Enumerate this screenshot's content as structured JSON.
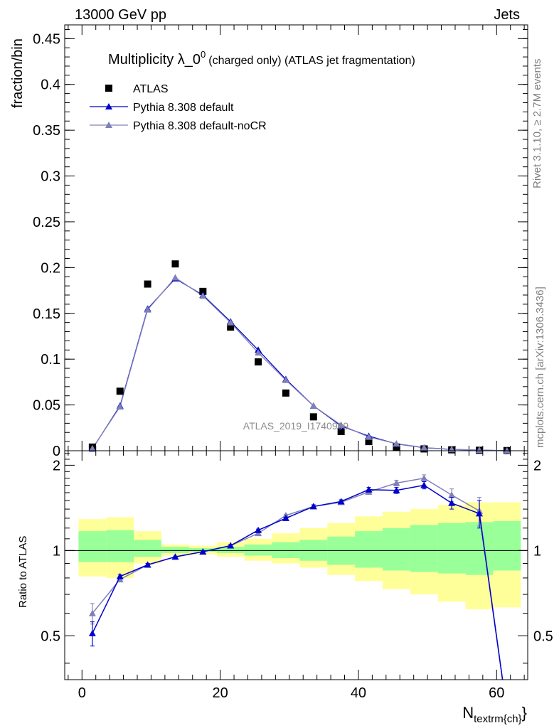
{
  "header": {
    "left": "13000 GeV pp",
    "right": "Jets"
  },
  "side": {
    "rivet": "Rivet 3.1.10, ≥ 2.7M events",
    "mcplots": "mcplots.cern.ch [arXiv:1306.3436]"
  },
  "watermark": "ATLAS_2019_I1740909",
  "chart_data": [
    {
      "type": "scatter",
      "title": "Multiplicity λ_0",
      "title_sup": "0",
      "title_tail": "(charged only) (ATLAS jet fragmentation)",
      "ylabel": "fraction/bin",
      "xlabel": "",
      "xlim": [
        -2.5,
        64.5
      ],
      "ylim": [
        0,
        0.465
      ],
      "yticks": [
        0,
        0.05,
        0.1,
        0.15,
        0.2,
        0.25,
        0.3,
        0.35,
        0.4,
        0.45
      ],
      "ytick_labels": [
        "0",
        "0.05",
        "0.1",
        "0.15",
        "0.2",
        "0.25",
        "0.3",
        "0.35",
        "0.4",
        "0.45"
      ],
      "grid": false,
      "legend_position": "top-left",
      "x": [
        1.5,
        5.5,
        9.5,
        13.5,
        17.5,
        21.5,
        25.5,
        29.5,
        33.5,
        37.5,
        41.5,
        45.5,
        49.5,
        53.5,
        57.5,
        61.5
      ],
      "series": [
        {
          "name": "ATLAS",
          "marker": "square",
          "color": "#000000",
          "values": [
            0.004,
            0.065,
            0.182,
            0.204,
            0.174,
            0.135,
            0.097,
            0.063,
            0.037,
            0.021,
            0.01,
            0.004,
            0.002,
            0.001,
            0.0005,
            0.0002
          ]
        },
        {
          "name": "Pythia 8.308 default",
          "marker": "triangle",
          "color": "#0000cc",
          "values": [
            0.002,
            0.049,
            0.155,
            0.188,
            0.17,
            0.141,
            0.11,
            0.078,
            0.049,
            0.027,
            0.016,
            0.0075,
            0.0033,
            0.0014,
            0.0007,
            5e-05
          ]
        },
        {
          "name": "Pythia 8.308 default-noCR",
          "marker": "triangle",
          "color": "#8080b8",
          "values": [
            0.0024,
            0.048,
            0.154,
            0.189,
            0.169,
            0.14,
            0.107,
            0.077,
            0.049,
            0.028,
            0.015,
            0.0077,
            0.0035,
            0.0015,
            0.0007,
            5e-05
          ]
        }
      ]
    },
    {
      "type": "line",
      "ylabel": "Ratio to ATLAS",
      "xlabel": "N",
      "xlabel_sub": "textrm{ch}",
      "xlim": [
        -2.5,
        64.5
      ],
      "ylim": [
        0.35,
        2.25
      ],
      "xticks": [
        0,
        20,
        40,
        60
      ],
      "xtick_labels": [
        "0",
        "20",
        "40",
        "60"
      ],
      "yticks": [
        0.5,
        1,
        2
      ],
      "ytick_labels": [
        "0.5",
        "1",
        "2"
      ],
      "reference_line": 1,
      "bins": [
        [
          -0.5,
          3.5
        ],
        [
          3.5,
          7.5
        ],
        [
          7.5,
          11.5
        ],
        [
          11.5,
          15.5
        ],
        [
          15.5,
          19.5
        ],
        [
          19.5,
          23.5
        ],
        [
          23.5,
          27.5
        ],
        [
          27.5,
          31.5
        ],
        [
          31.5,
          35.5
        ],
        [
          35.5,
          39.5
        ],
        [
          39.5,
          43.5
        ],
        [
          43.5,
          47.5
        ],
        [
          47.5,
          51.5
        ],
        [
          51.5,
          55.5
        ],
        [
          55.5,
          59.5
        ],
        [
          59.5,
          63.5
        ]
      ],
      "bands": {
        "stat_low": [
          0.91,
          0.91,
          0.95,
          0.98,
          0.99,
          0.98,
          0.96,
          0.94,
          0.92,
          0.89,
          0.87,
          0.85,
          0.84,
          0.83,
          0.82,
          0.85
        ],
        "stat_high": [
          1.17,
          1.18,
          1.09,
          1.03,
          1.02,
          1.03,
          1.05,
          1.07,
          1.09,
          1.12,
          1.17,
          1.2,
          1.23,
          1.25,
          1.26,
          1.27
        ],
        "total_low": [
          0.81,
          0.8,
          0.9,
          0.96,
          0.97,
          0.95,
          0.92,
          0.9,
          0.87,
          0.82,
          0.78,
          0.73,
          0.7,
          0.66,
          0.62,
          0.63
        ],
        "total_high": [
          1.29,
          1.31,
          1.17,
          1.05,
          1.04,
          1.07,
          1.1,
          1.15,
          1.2,
          1.25,
          1.32,
          1.37,
          1.4,
          1.45,
          1.48,
          1.48
        ],
        "stat_color": "#99ff99",
        "total_color": "#ffff99"
      },
      "x": [
        1.5,
        5.5,
        9.5,
        13.5,
        17.5,
        21.5,
        25.5,
        29.5,
        33.5,
        37.5,
        41.5,
        45.5,
        49.5,
        53.5,
        57.5,
        61.5
      ],
      "series": [
        {
          "name": "Pythia 8.308 default",
          "color": "#0000cc",
          "values": [
            0.51,
            0.81,
            0.89,
            0.95,
            0.99,
            1.04,
            1.18,
            1.3,
            1.43,
            1.49,
            1.64,
            1.63,
            1.7,
            1.47,
            1.35,
            0.27
          ],
          "errors": [
            0.05,
            0.01,
            0.01,
            0.005,
            0.005,
            0.01,
            0.01,
            0.01,
            0.02,
            0.02,
            0.03,
            0.04,
            0.05,
            0.07,
            0.15,
            0.0
          ]
        },
        {
          "name": "Pythia 8.308 default-noCR",
          "color": "#8080b8",
          "values": [
            0.6,
            0.79,
            0.89,
            0.95,
            0.99,
            1.04,
            1.15,
            1.33,
            1.43,
            1.48,
            1.61,
            1.73,
            1.8,
            1.57,
            1.38,
            0.27
          ],
          "errors": [
            0.05,
            0.01,
            0.01,
            0.005,
            0.005,
            0.01,
            0.01,
            0.01,
            0.02,
            0.02,
            0.03,
            0.04,
            0.05,
            0.08,
            0.16,
            0.0
          ]
        }
      ]
    }
  ]
}
